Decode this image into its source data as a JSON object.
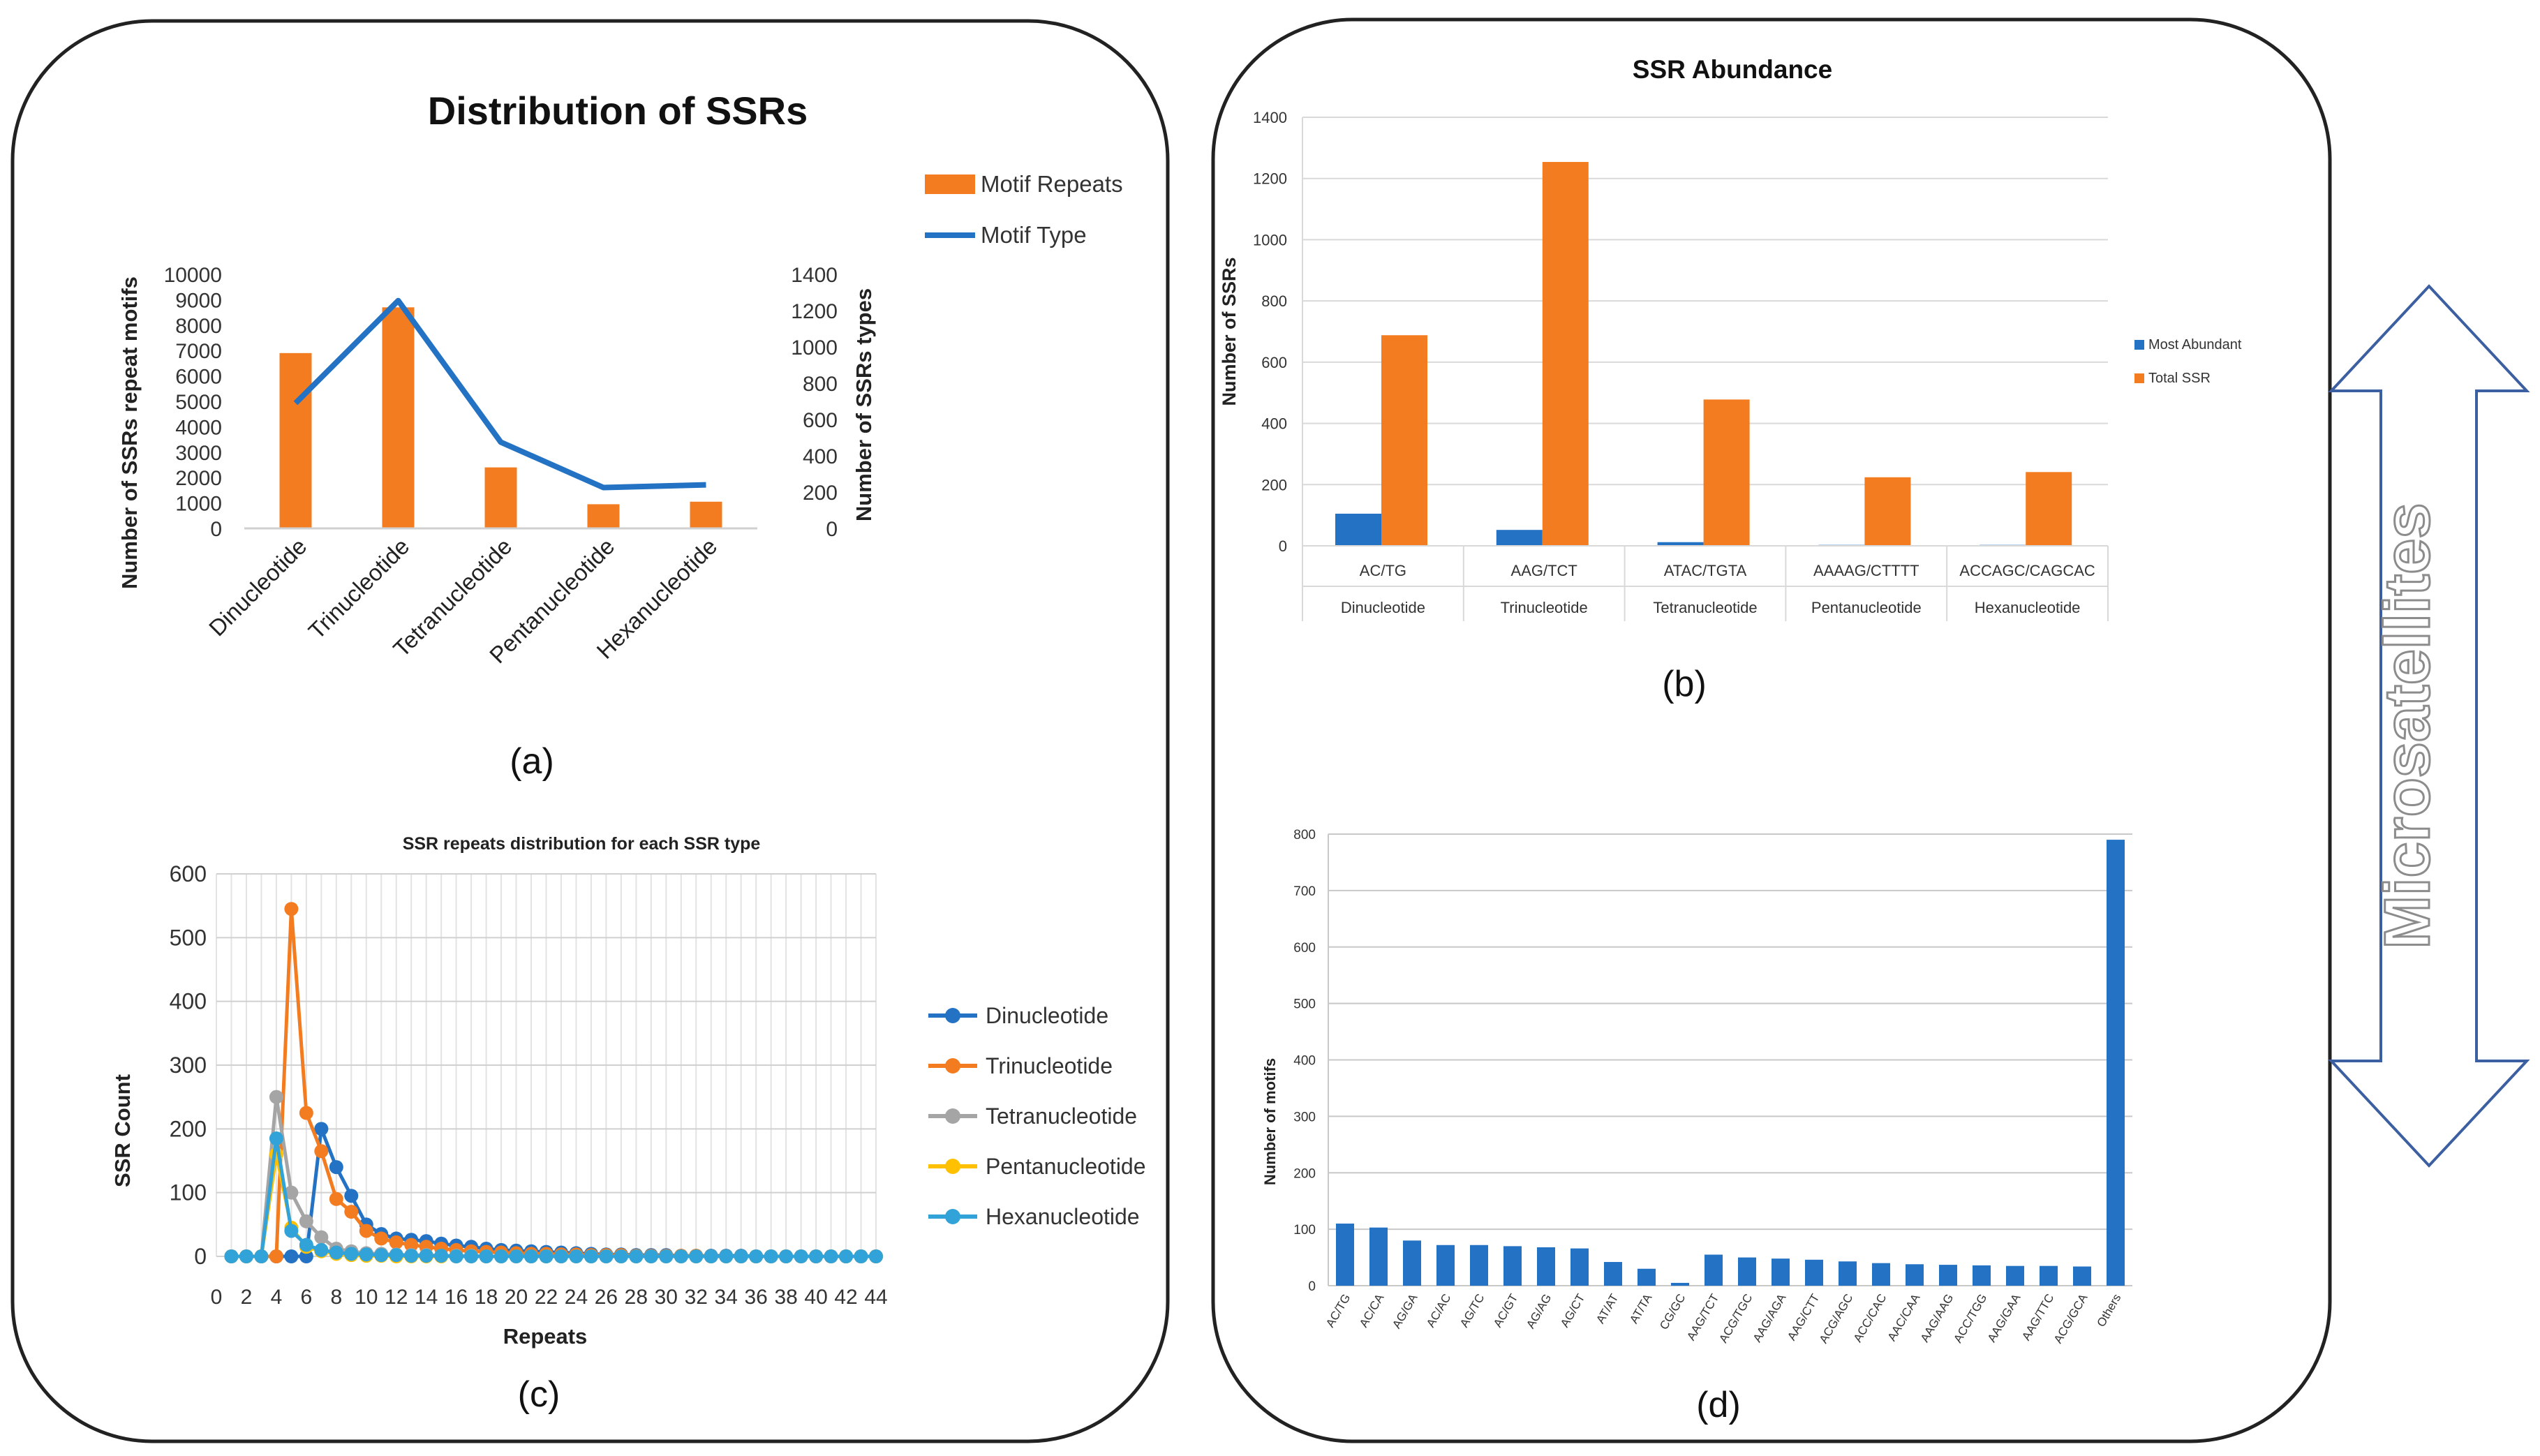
{
  "panels": {
    "a": {
      "caption": "(a)"
    },
    "b": {
      "caption": "(b)"
    },
    "c": {
      "caption": "(c)"
    },
    "d": {
      "caption": "(d)"
    }
  },
  "side_arrow": {
    "label": "Microsatellites"
  },
  "colors": {
    "orange": "#f47c20",
    "blue": "#2372c4",
    "gray": "#a5a5a5",
    "yellow": "#ffc000",
    "lightblue": "#32a3d8",
    "frame": "#222222",
    "grid": "#d9d9d9",
    "arrow": "#3b5fa0",
    "arrow_text": "#8c8c8c"
  },
  "chart_data": [
    {
      "id": "a",
      "type": "bar",
      "title": "Distribution of SSRs",
      "categories": [
        "Dinucleotide",
        "Trinucleotide",
        "Tetranucleotide",
        "Pentanucleotide",
        "Hexanucleotide"
      ],
      "series": [
        {
          "name": "Motif Repeats",
          "kind": "bar",
          "axis": "left",
          "values": [
            6900,
            8700,
            2400,
            950,
            1050
          ]
        },
        {
          "name": "Motif Type",
          "kind": "line",
          "axis": "right",
          "values": [
            690,
            1255,
            475,
            225,
            240
          ]
        }
      ],
      "ylabel": "Number of SSRs repeat motifs",
      "y2label": "Number of SSRs types",
      "ylim": [
        0,
        10000
      ],
      "y2lim": [
        0,
        1400
      ],
      "yticks": [
        "0",
        "1000",
        "2000",
        "3000",
        "4000",
        "5000",
        "6000",
        "7000",
        "8000",
        "9000",
        "10000"
      ],
      "y2ticks": [
        "0",
        "200",
        "400",
        "600",
        "800",
        "1000",
        "1200",
        "1400"
      ],
      "legend": "top-right"
    },
    {
      "id": "b",
      "type": "bar",
      "title": "SSR Abundance",
      "categories": [
        "AC/TG",
        "AAG/TCT",
        "ATAC/TGTA",
        "AAAAG/CTTTT",
        "ACCAGC/CAGCAC"
      ],
      "groups": [
        "Dinucleotide",
        "Trinucleotide",
        "Tetranucleotide",
        "Pentanucleotide",
        "Hexanucleotide"
      ],
      "series": [
        {
          "name": "Most Abundant",
          "values": [
            105,
            52,
            12,
            3,
            3
          ]
        },
        {
          "name": "Total SSR",
          "values": [
            688,
            1254,
            478,
            224,
            241
          ]
        }
      ],
      "ylabel": "Number of SSRs",
      "ylim": [
        0,
        1400
      ],
      "yticks": [
        "0",
        "200",
        "400",
        "600",
        "800",
        "1000",
        "1200",
        "1400"
      ],
      "legend": "right",
      "grid": true
    },
    {
      "id": "c",
      "type": "line",
      "title": "SSR repeats distribution for each SSR type",
      "xlabel": "Repeats",
      "ylabel": "SSR Count",
      "xlim": [
        0,
        44
      ],
      "ylim": [
        0,
        600
      ],
      "xticks": [
        "0",
        "2",
        "4",
        "6",
        "8",
        "10",
        "12",
        "14",
        "16",
        "18",
        "20",
        "22",
        "24",
        "26",
        "28",
        "30",
        "32",
        "34",
        "36",
        "38",
        "40",
        "42",
        "44"
      ],
      "yticks": [
        "0",
        "100",
        "200",
        "300",
        "400",
        "500",
        "600"
      ],
      "x": [
        1,
        2,
        3,
        4,
        5,
        6,
        7,
        8,
        9,
        10,
        11,
        12,
        13,
        14,
        15,
        16,
        17,
        18,
        19,
        20,
        21,
        22,
        23,
        24,
        25,
        26,
        27,
        28,
        29,
        30,
        31,
        32,
        33,
        34,
        35,
        36,
        37,
        38,
        39,
        40,
        41,
        42,
        43,
        44
      ],
      "series": [
        {
          "name": "Dinucleotide",
          "values": [
            0,
            0,
            0,
            0,
            0,
            0,
            200,
            140,
            95,
            50,
            35,
            28,
            26,
            24,
            20,
            17,
            15,
            12,
            10,
            9,
            8,
            7,
            6,
            5,
            4,
            3,
            3,
            2,
            2,
            2,
            1,
            1,
            1,
            1,
            1,
            0,
            0,
            0,
            0,
            0,
            0,
            0,
            0,
            0
          ]
        },
        {
          "name": "Trinucleotide",
          "values": [
            0,
            0,
            0,
            0,
            545,
            225,
            165,
            90,
            70,
            40,
            28,
            22,
            18,
            15,
            12,
            10,
            8,
            7,
            6,
            5,
            4,
            4,
            3,
            3,
            2,
            2,
            2,
            1,
            1,
            1,
            1,
            1,
            0,
            0,
            0,
            0,
            0,
            0,
            0,
            0,
            0,
            0,
            0,
            0
          ]
        },
        {
          "name": "Tetranucleotide",
          "values": [
            0,
            0,
            0,
            250,
            100,
            55,
            30,
            12,
            8,
            5,
            4,
            3,
            2,
            2,
            1,
            1,
            1,
            0,
            0,
            0,
            0,
            0,
            0,
            0,
            0,
            0,
            0,
            0,
            0,
            0,
            0,
            0,
            0,
            0,
            0,
            0,
            0,
            0,
            0,
            0,
            0,
            0,
            0,
            0
          ]
        },
        {
          "name": "Pentanucleotide",
          "values": [
            0,
            0,
            0,
            160,
            45,
            15,
            8,
            4,
            2,
            1,
            1,
            0,
            0,
            0,
            0,
            0,
            0,
            0,
            0,
            0,
            0,
            0,
            0,
            0,
            0,
            0,
            0,
            0,
            0,
            0,
            0,
            0,
            0,
            0,
            0,
            0,
            0,
            0,
            0,
            0,
            0,
            0,
            0,
            0
          ]
        },
        {
          "name": "Hexanucleotide",
          "values": [
            0,
            0,
            0,
            185,
            40,
            18,
            10,
            6,
            4,
            3,
            2,
            2,
            1,
            1,
            1,
            0,
            0,
            0,
            0,
            0,
            0,
            0,
            0,
            0,
            0,
            0,
            0,
            0,
            0,
            0,
            0,
            0,
            0,
            0,
            0,
            0,
            0,
            0,
            0,
            0,
            0,
            0,
            0,
            0
          ]
        }
      ],
      "legend": "right",
      "grid": true
    },
    {
      "id": "d",
      "type": "bar",
      "title": "",
      "ylabel": "Number of motifs",
      "ylim": [
        0,
        800
      ],
      "yticks": [
        "0",
        "100",
        "200",
        "300",
        "400",
        "500",
        "600",
        "700",
        "800"
      ],
      "categories": [
        "AC/TG",
        "AC/CA",
        "AG/GA",
        "AC/AC",
        "AG/TC",
        "AC/GT",
        "AG/AG",
        "AG/CT",
        "AT/AT",
        "AT/TA",
        "CG/GC",
        "AAG/TCT",
        "ACG/TGC",
        "AAG/AGA",
        "AAG/CTT",
        "ACG/AGC",
        "ACC/CAC",
        "AAC/CAA",
        "AAG/AAG",
        "ACC/TGG",
        "AAG/GAA",
        "AAG/TTC",
        "ACG/GCA",
        "Others"
      ],
      "values": [
        110,
        103,
        80,
        72,
        72,
        70,
        68,
        66,
        42,
        30,
        5,
        55,
        50,
        48,
        46,
        43,
        40,
        38,
        37,
        36,
        35,
        35,
        34,
        790
      ],
      "grid": true
    }
  ]
}
